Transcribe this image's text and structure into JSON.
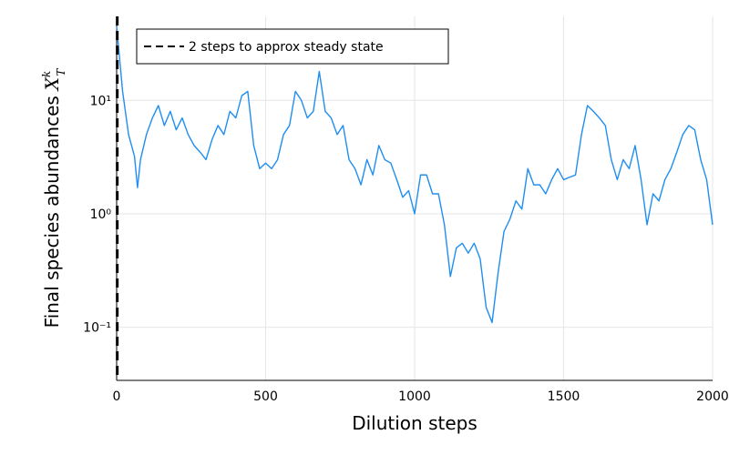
{
  "chart_data": {
    "type": "line",
    "x_label": "Dilution steps",
    "y_label": {
      "text": "Final species abundances",
      "var": "X",
      "sub": "T",
      "sup": "k"
    },
    "x": [
      0,
      20,
      40,
      60,
      70,
      80,
      100,
      120,
      140,
      160,
      180,
      200,
      220,
      240,
      260,
      280,
      300,
      320,
      340,
      360,
      380,
      400,
      420,
      440,
      460,
      480,
      500,
      520,
      540,
      560,
      580,
      600,
      620,
      640,
      660,
      680,
      700,
      720,
      740,
      760,
      780,
      800,
      820,
      840,
      860,
      880,
      900,
      920,
      940,
      960,
      980,
      1000,
      1020,
      1040,
      1060,
      1080,
      1100,
      1120,
      1140,
      1160,
      1180,
      1200,
      1220,
      1240,
      1260,
      1280,
      1300,
      1320,
      1340,
      1360,
      1380,
      1400,
      1420,
      1440,
      1460,
      1480,
      1500,
      1520,
      1540,
      1560,
      1580,
      1600,
      1620,
      1640,
      1660,
      1680,
      1700,
      1720,
      1740,
      1760,
      1780,
      1800,
      1820,
      1840,
      1860,
      1880,
      1900,
      1920,
      1940,
      1960,
      1980,
      2000
    ],
    "series": [
      {
        "color": "#1f8ef1",
        "values": [
          45,
          12,
          5,
          3.2,
          1.7,
          3,
          5,
          7,
          9,
          6,
          8,
          5.5,
          7,
          5,
          4,
          3.5,
          3,
          4.5,
          6,
          5,
          8,
          7,
          11,
          12,
          4,
          2.5,
          2.8,
          2.5,
          3,
          5,
          6,
          12,
          10,
          7,
          8,
          18,
          8,
          7,
          5,
          6,
          3,
          2.5,
          1.8,
          3,
          2.2,
          4,
          3,
          2.8,
          2,
          1.4,
          1.6,
          1.0,
          2.2,
          2.2,
          1.5,
          1.5,
          0.8,
          0.28,
          0.5,
          0.55,
          0.45,
          0.55,
          0.4,
          0.15,
          0.11,
          0.3,
          0.7,
          0.9,
          1.3,
          1.1,
          2.5,
          1.8,
          1.8,
          1.5,
          2.0,
          2.5,
          2.0,
          2.1,
          2.2,
          5,
          9,
          8,
          7,
          6,
          3,
          2,
          3,
          2.5,
          4,
          2,
          0.8,
          1.5,
          1.3,
          2.0,
          2.5,
          3.5,
          5,
          6,
          5.5,
          3,
          2.0,
          0.8
        ]
      }
    ],
    "vlines": [
      {
        "name": "2 steps to approx steady state",
        "x": 2,
        "color": "#000000",
        "dash": true
      }
    ],
    "xlim": [
      0,
      2000
    ],
    "xticks": [
      0,
      500,
      1000,
      1500,
      2000
    ],
    "ylim": [
      0.034,
      55
    ],
    "log_y": true,
    "yticks": [
      {
        "value": 0.1,
        "label": "10⁻¹"
      },
      {
        "value": 1,
        "label": "10⁰"
      },
      {
        "value": 10,
        "label": "10¹"
      }
    ],
    "grid": true,
    "legend": "top-left"
  }
}
